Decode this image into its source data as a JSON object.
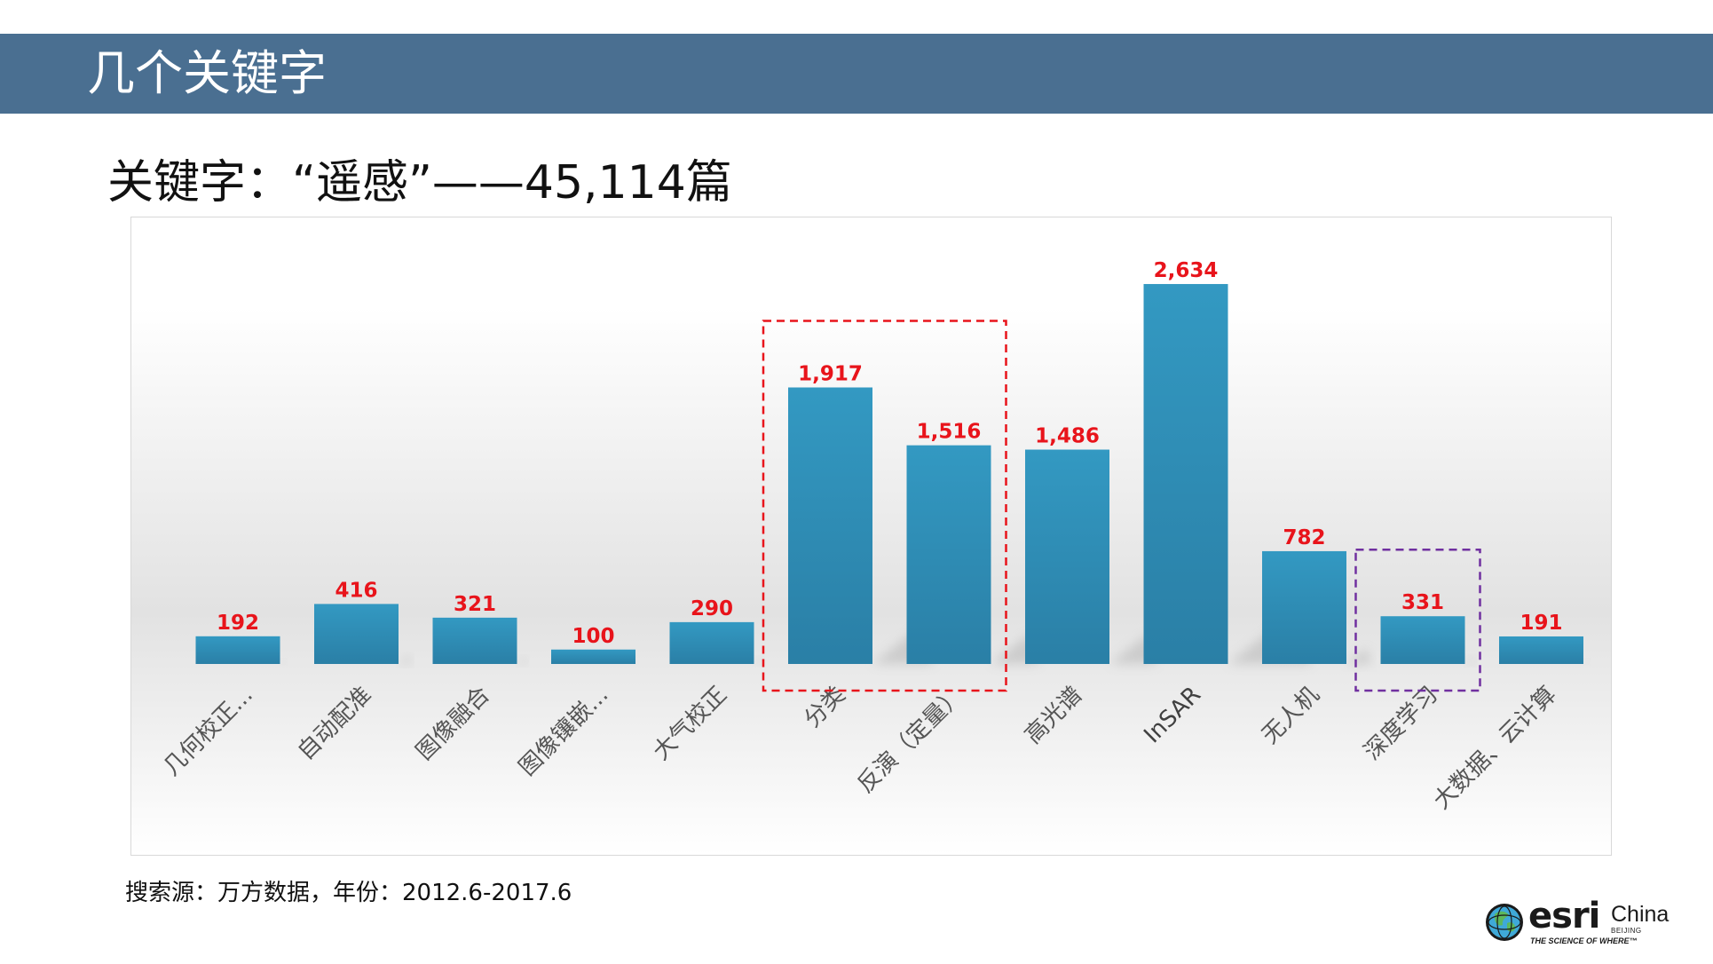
{
  "slide": {
    "title": "几个关键字",
    "subtitle": "关键字：“遥感”——45,114篇",
    "source": "搜索源：万方数据，年份：2012.6-2017.6"
  },
  "logo": {
    "brand": "esri",
    "region": "China",
    "city": "BEIJING",
    "tagline": "THE SCIENCE OF WHERE™"
  },
  "colors": {
    "title_band": "#4a6f91",
    "bar": "#2f8db5",
    "value_label": "#e8141b",
    "highlight_box_1": "#e8141b",
    "highlight_box_2": "#7030a0"
  },
  "chart_data": {
    "type": "bar",
    "title": "",
    "xlabel": "",
    "ylabel": "",
    "categories": [
      "几何校正...",
      "自动配准",
      "图像融合",
      "图像镶嵌...",
      "大气校正",
      "分类",
      "反演（定量）",
      "高光谱",
      "InSAR",
      "无人机",
      "深度学习",
      "大数据、云计算"
    ],
    "values": [
      192,
      416,
      321,
      100,
      290,
      1917,
      1516,
      1486,
      2634,
      782,
      331,
      191
    ],
    "value_labels": [
      "192",
      "416",
      "321",
      "100",
      "290",
      "1,917",
      "1,516",
      "1,486",
      "2,634",
      "782",
      "331",
      "191"
    ],
    "ylim": [
      0,
      2800
    ],
    "grid": false,
    "legend": "none",
    "highlight_groups": [
      {
        "categories": [
          "分类",
          "反演（定量）"
        ],
        "style": "dashed",
        "color": "#e8141b"
      },
      {
        "categories": [
          "深度学习"
        ],
        "style": "dashed",
        "color": "#7030a0"
      }
    ]
  }
}
